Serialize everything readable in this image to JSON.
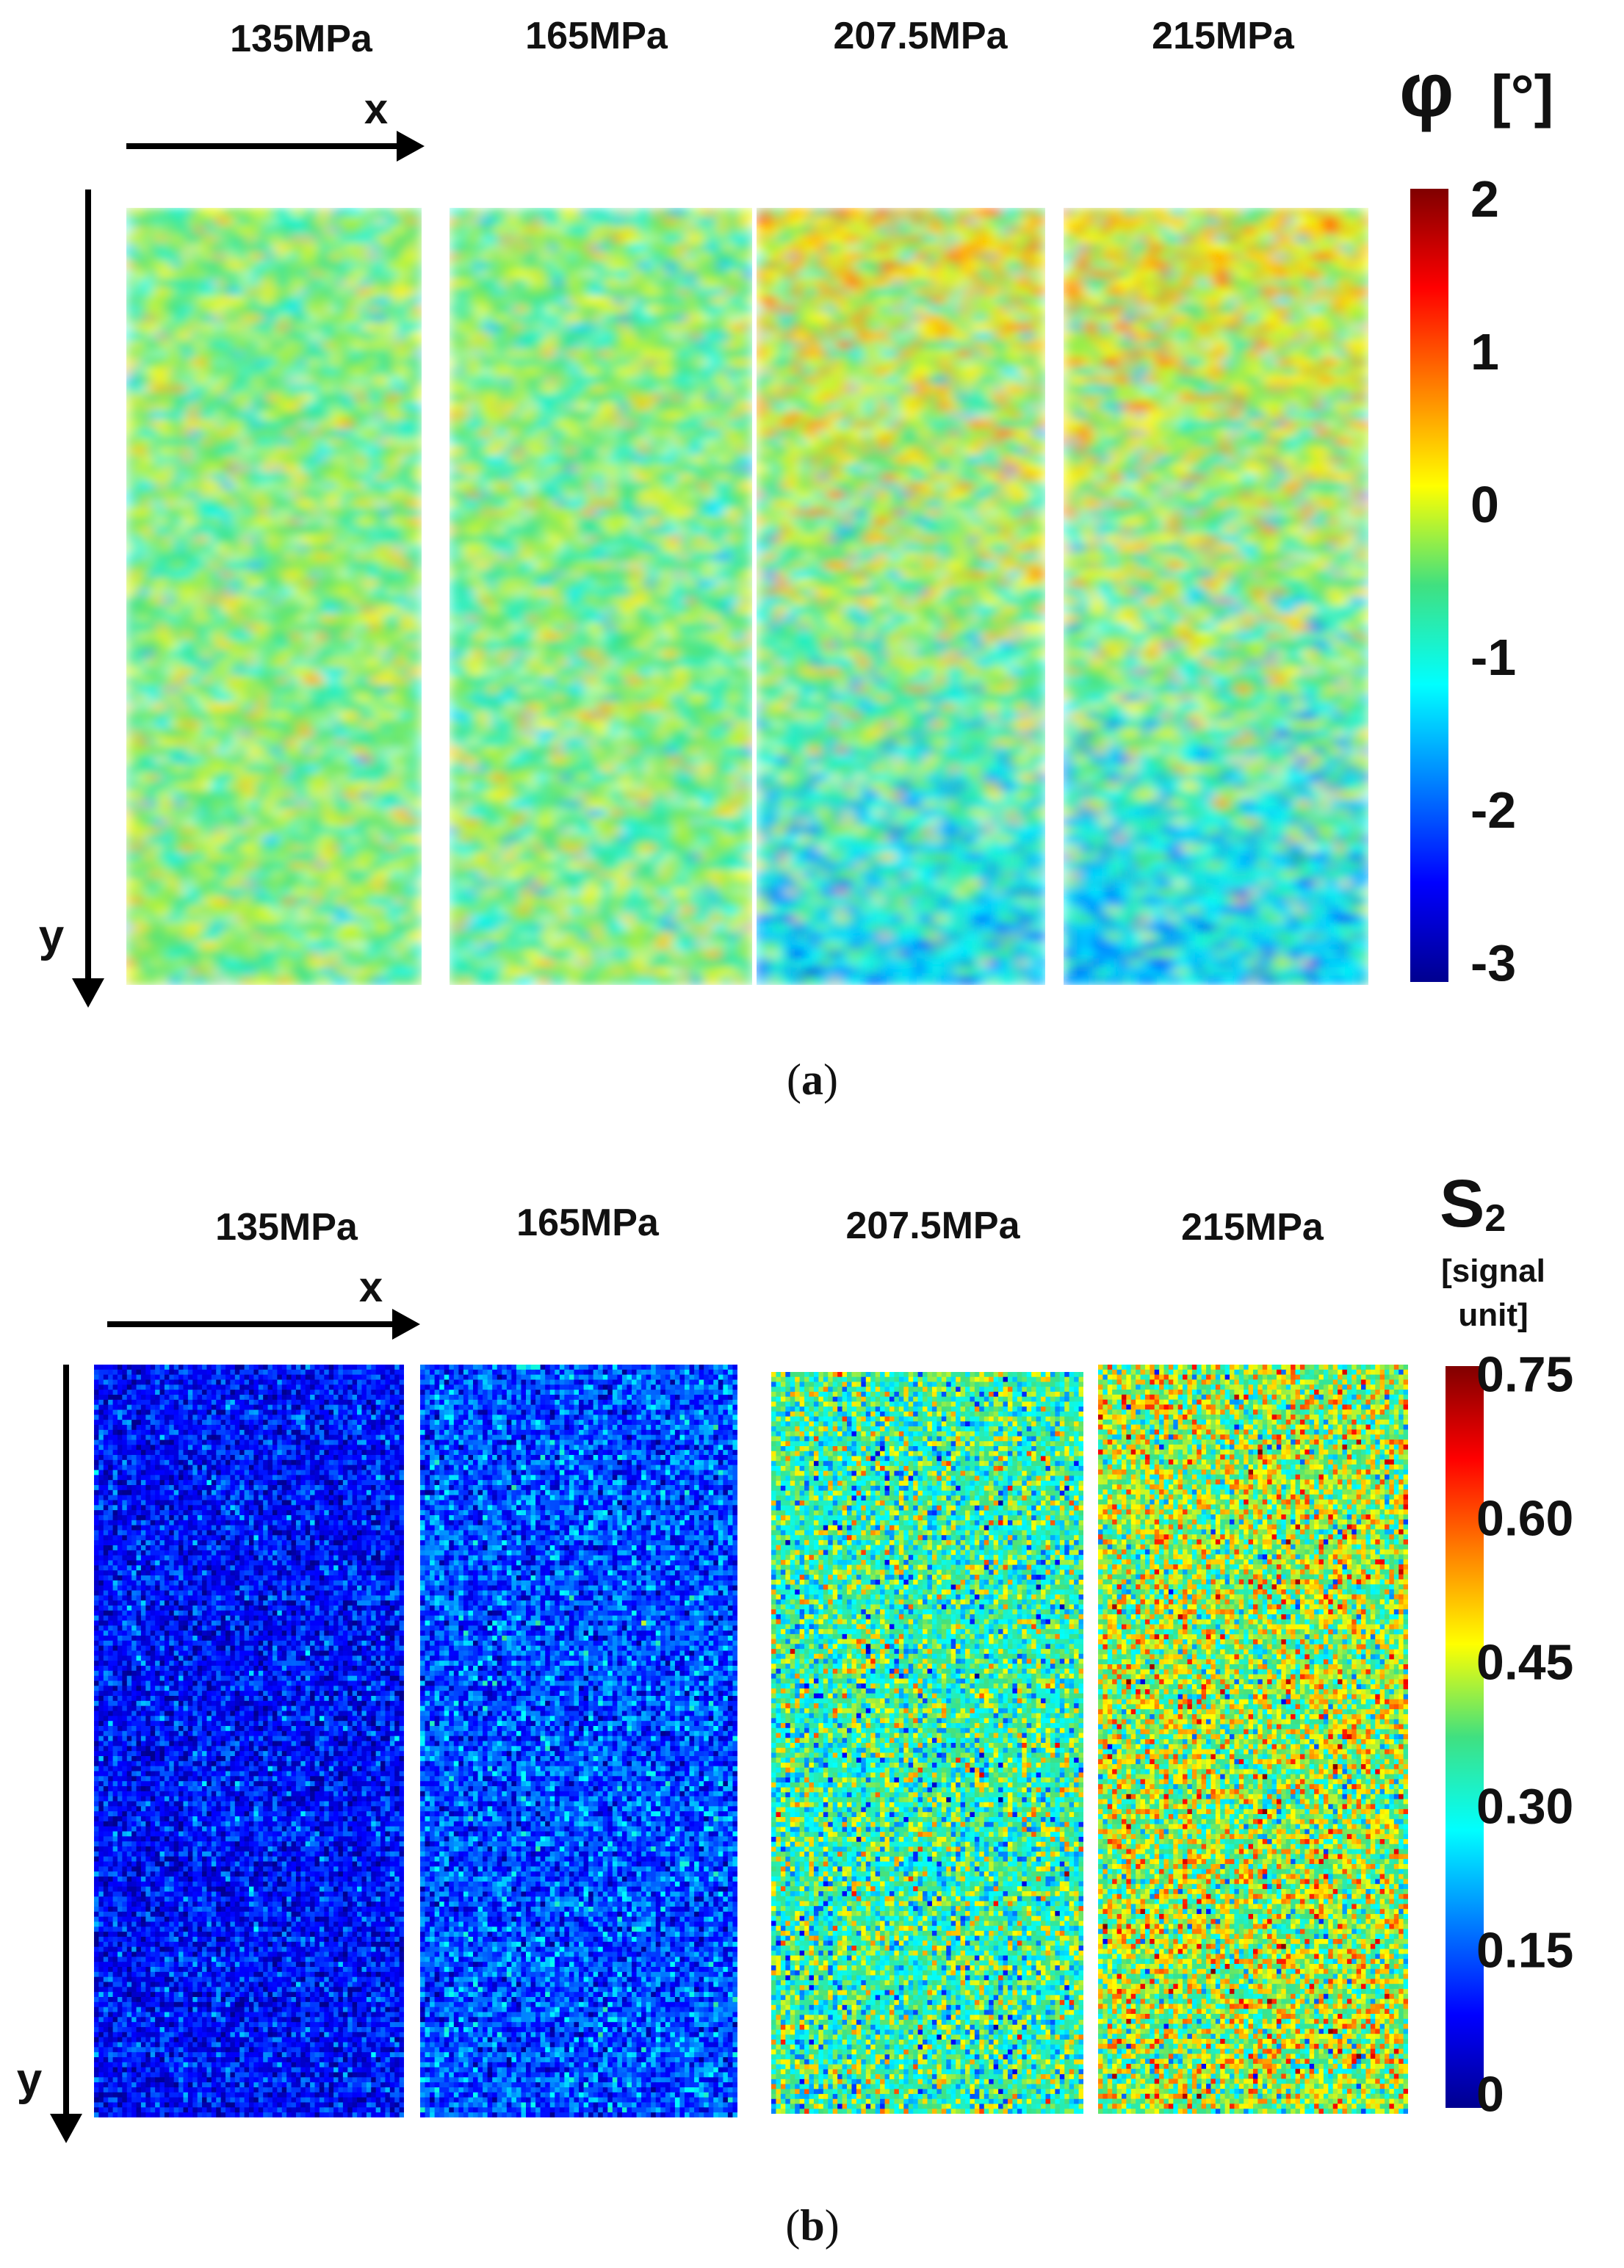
{
  "panels": [
    {
      "caption_open": "(",
      "caption_letter": "a",
      "caption_close": ")",
      "colorbar": {
        "symbol": "φ",
        "unit": "[°]",
        "line2": "",
        "ticks": [
          "2",
          "1",
          "0",
          "-1",
          "-2",
          "-3"
        ],
        "range": [
          -3,
          2
        ]
      },
      "axes": {
        "x": "x",
        "y": "y"
      },
      "maps": [
        {
          "label": "135MPa",
          "style": "smooth",
          "mean": 0.52,
          "sd": 0.085,
          "gradient": 0.0,
          "seed": 11
        },
        {
          "label": "165MPa",
          "style": "smooth",
          "mean": 0.51,
          "sd": 0.09,
          "gradient": 0.0,
          "seed": 23
        },
        {
          "label": "207.5MPa",
          "style": "smooth",
          "mean": 0.52,
          "sd": 0.11,
          "gradient": 0.22,
          "seed": 37
        },
        {
          "label": "215MPa",
          "style": "smooth",
          "mean": 0.52,
          "sd": 0.115,
          "gradient": 0.22,
          "seed": 53
        }
      ]
    },
    {
      "caption_open": "(",
      "caption_letter": "b",
      "caption_close": ")",
      "colorbar": {
        "symbol": "S",
        "subscript": "2",
        "unit": "[signal",
        "line2": "unit]",
        "ticks": [
          "0.75",
          "0.60",
          "0.45",
          "0.30",
          "0.15",
          "0"
        ],
        "range": [
          0,
          0.75
        ]
      },
      "axes": {
        "x": "x",
        "y": "y"
      },
      "maps": [
        {
          "label": "135MPa",
          "style": "pixel",
          "mean": 0.13,
          "sd": 0.075,
          "gradient": 0.0,
          "seed": 71
        },
        {
          "label": "165MPa",
          "style": "pixel",
          "mean": 0.2,
          "sd": 0.085,
          "gradient": 0.0,
          "seed": 83
        },
        {
          "label": "207.5MPa",
          "style": "pixel",
          "mean": 0.46,
          "sd": 0.13,
          "gradient": 0.0,
          "seed": 97
        },
        {
          "label": "215MPa",
          "style": "pixel",
          "mean": 0.56,
          "sd": 0.14,
          "gradient": 0.0,
          "seed": 109
        }
      ]
    }
  ],
  "chart_data": [
    {
      "type": "heatmap",
      "title": "(a) φ [°]",
      "panel_labels": [
        "135MPa",
        "165MPa",
        "207.5MPa",
        "215MPa"
      ],
      "xlabel": "x",
      "ylabel": "y",
      "colorbar_label": "φ [°]",
      "colorbar_range": [
        -3,
        2
      ],
      "colorbar_ticks": [
        2,
        1,
        0,
        -1,
        -2,
        -3
      ]
    },
    {
      "type": "heatmap",
      "title": "(b) S2 [signal unit]",
      "panel_labels": [
        "135MPa",
        "165MPa",
        "207.5MPa",
        "215MPa"
      ],
      "xlabel": "x",
      "ylabel": "y",
      "colorbar_label": "S2 [signal unit]",
      "colorbar_range": [
        0,
        0.75
      ],
      "colorbar_ticks": [
        0.75,
        0.6,
        0.45,
        0.3,
        0.15,
        0
      ]
    }
  ]
}
